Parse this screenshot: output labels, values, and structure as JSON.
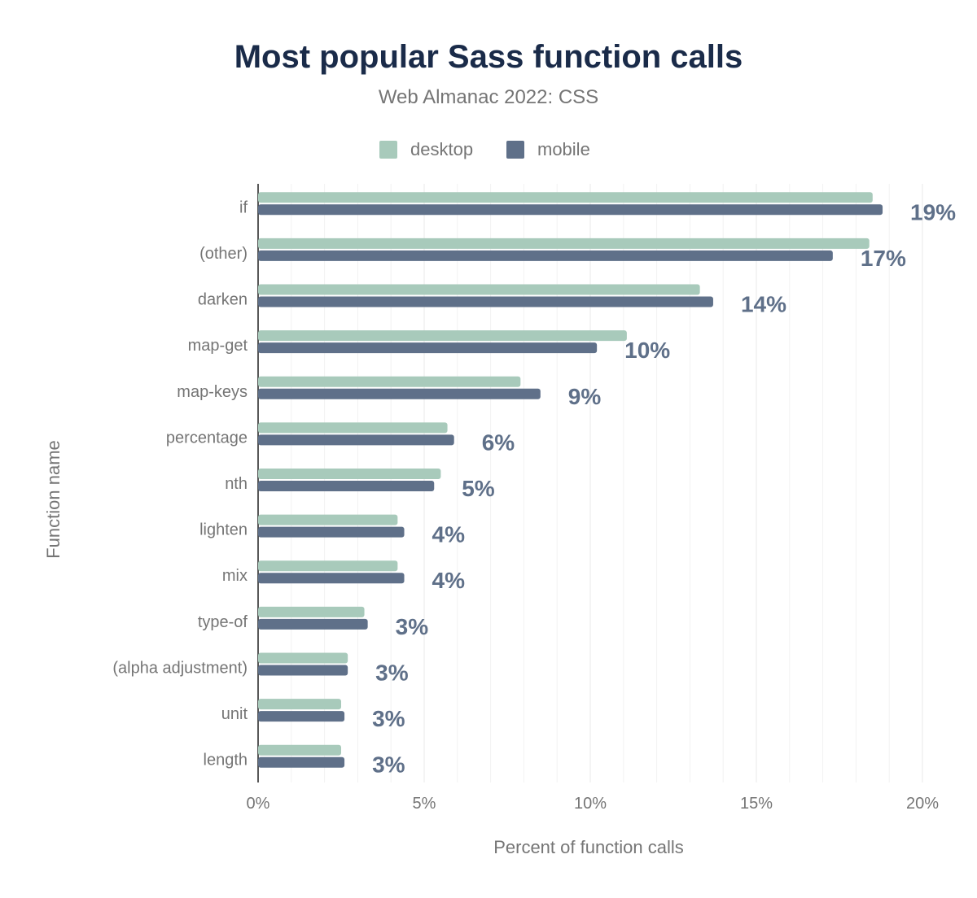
{
  "chart_data": {
    "type": "bar",
    "orientation": "horizontal",
    "title": "Most popular Sass function calls",
    "subtitle": "Web Almanac 2022: CSS",
    "xlabel": "Percent of function calls",
    "ylabel": "Function name",
    "xlim": [
      0,
      20
    ],
    "x_ticks": [
      "0%",
      "5%",
      "10%",
      "15%",
      "20%"
    ],
    "grid": true,
    "legend_position": "top",
    "categories": [
      "if",
      "(other)",
      "darken",
      "map-get",
      "map-keys",
      "percentage",
      "nth",
      "lighten",
      "mix",
      "type-of",
      "(alpha adjustment)",
      "unit",
      "length"
    ],
    "series": [
      {
        "name": "desktop",
        "color": "#a8cabb",
        "values": [
          18.5,
          18.4,
          13.3,
          11.1,
          7.9,
          5.7,
          5.5,
          4.2,
          4.2,
          3.2,
          2.7,
          2.5,
          2.5
        ]
      },
      {
        "name": "mobile",
        "color": "#5f7089",
        "values": [
          18.8,
          17.3,
          13.7,
          10.2,
          8.5,
          5.9,
          5.3,
          4.4,
          4.4,
          3.3,
          2.7,
          2.6,
          2.6
        ]
      }
    ],
    "data_labels": [
      "19%",
      "17%",
      "14%",
      "10%",
      "9%",
      "6%",
      "5%",
      "4%",
      "4%",
      "3%",
      "3%",
      "3%",
      "3%"
    ]
  }
}
